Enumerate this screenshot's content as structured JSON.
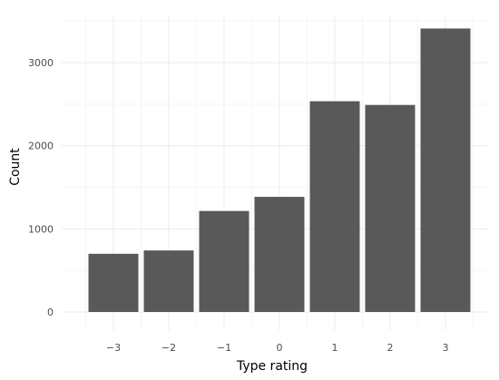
{
  "chart_data": {
    "type": "bar",
    "categories": [
      "−3",
      "−2",
      "−1",
      "0",
      "1",
      "2",
      "3"
    ],
    "values": [
      700,
      740,
      1215,
      1385,
      2535,
      2490,
      3410
    ],
    "title": "",
    "xlabel": "Type rating",
    "ylabel": "Count",
    "ylim": [
      0,
      3550
    ],
    "yticks": [
      0,
      1000,
      2000,
      3000
    ],
    "ytick_labels": [
      "0",
      "1000",
      "2000",
      "3000"
    ],
    "grid": true,
    "bar_color": "#595959",
    "grid_color": "#ebebeb",
    "background": "#ffffff"
  }
}
